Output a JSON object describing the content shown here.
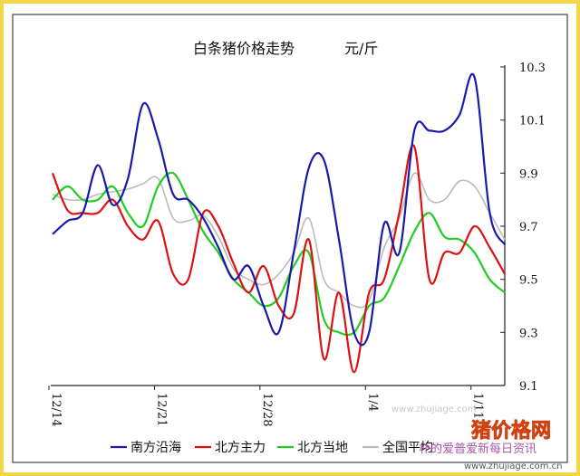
{
  "chart_data": {
    "type": "line",
    "title": "白条猪价格走势",
    "unit": "元/斤",
    "x": [
      "12/14",
      "12/15",
      "12/16",
      "12/17",
      "12/18",
      "12/19",
      "12/20",
      "12/21",
      "12/22",
      "12/23",
      "12/24",
      "12/25",
      "12/26",
      "12/27",
      "12/28",
      "12/29",
      "12/30",
      "12/31",
      "1/1",
      "1/2",
      "1/3",
      "1/4",
      "1/5",
      "1/6",
      "1/7",
      "1/8",
      "1/9",
      "1/10",
      "1/11",
      "1/12",
      "1/13"
    ],
    "x_tick_labels": [
      "12/14",
      "12/21",
      "12/28",
      "1/4",
      "1/11"
    ],
    "y_ticks": [
      "9.1",
      "9.3",
      "9.5",
      "9.7",
      "9.9",
      "10.1",
      "10.3"
    ],
    "ylim": [
      9.1,
      10.3
    ],
    "grid": false,
    "legend_position": "bottom",
    "series": [
      {
        "name": "南方沿海",
        "color": "#1a1aaa",
        "values": [
          9.67,
          9.72,
          9.75,
          9.93,
          9.78,
          9.88,
          10.16,
          10.03,
          9.82,
          9.8,
          9.73,
          9.62,
          9.5,
          9.55,
          9.4,
          9.3,
          9.6,
          9.92,
          9.95,
          9.65,
          9.3,
          9.3,
          9.71,
          9.6,
          10.06,
          10.06,
          10.06,
          10.12,
          10.26,
          9.75,
          9.63
        ]
      },
      {
        "name": "北方主力",
        "color": "#dd1111",
        "values": [
          9.9,
          9.76,
          9.75,
          9.75,
          9.8,
          9.7,
          9.65,
          9.72,
          9.52,
          9.5,
          9.75,
          9.7,
          9.56,
          9.45,
          9.55,
          9.4,
          9.37,
          9.65,
          9.2,
          9.45,
          9.15,
          9.45,
          9.5,
          9.75,
          10.0,
          9.5,
          9.6,
          9.6,
          9.7,
          9.62,
          9.52
        ]
      },
      {
        "name": "北方当地",
        "color": "#22cc22",
        "values": [
          9.8,
          9.85,
          9.8,
          9.8,
          9.85,
          9.75,
          9.7,
          9.85,
          9.9,
          9.8,
          9.68,
          9.6,
          9.5,
          9.45,
          9.4,
          9.43,
          9.55,
          9.6,
          9.35,
          9.3,
          9.3,
          9.4,
          9.43,
          9.55,
          9.68,
          9.75,
          9.66,
          9.65,
          9.6,
          9.5,
          9.45
        ]
      },
      {
        "name": "全国平均",
        "color": "#bbbbbb",
        "values": [
          9.82,
          9.8,
          9.8,
          9.82,
          9.83,
          9.84,
          9.86,
          9.88,
          9.73,
          9.72,
          9.74,
          9.66,
          9.54,
          9.5,
          9.48,
          9.52,
          9.6,
          9.73,
          9.5,
          9.45,
          9.4,
          9.42,
          9.62,
          9.73,
          9.9,
          9.8,
          9.8,
          9.87,
          9.85,
          9.75,
          9.65
        ]
      }
    ]
  },
  "watermark": {
    "logo_text": "猪价格网",
    "url_text": "www.zhujiage.com.cn",
    "wechat_text": "朴的爱普爱新每日资讯",
    "faint_url": "www.zhujiage.com"
  }
}
